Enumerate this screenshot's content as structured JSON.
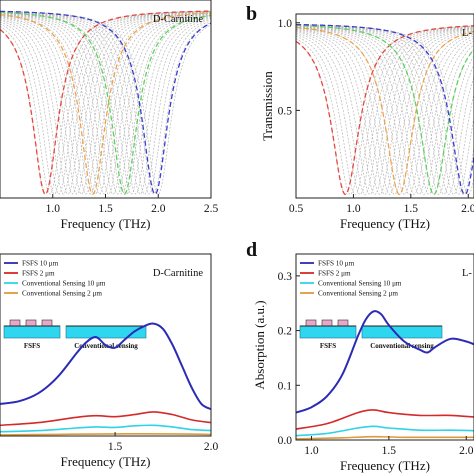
{
  "chart_data": [
    {
      "panel": "a",
      "type": "line",
      "panel_label": "",
      "title": "D-Carnitine",
      "xlabel": "Frequency (THz)",
      "ylabel": "",
      "xlim": [
        0.5,
        2.5
      ],
      "ylim": [
        0.0,
        1.05
      ],
      "xticks": [
        "1.0",
        "1.5",
        "2.0",
        "2.5"
      ],
      "xtick_values": [
        1.0,
        1.5,
        2.0,
        2.5
      ],
      "yticks": [],
      "ytick_values": [],
      "resonance_range": [
        0.93,
        2.0
      ],
      "resonance_width": 0.3,
      "resonance_count": 26,
      "highlighted": [
        {
          "f0": 0.93,
          "color": "#e8453c"
        },
        {
          "f0": 1.38,
          "color": "#f0a24b"
        },
        {
          "f0": 1.68,
          "color": "#5bd35b"
        },
        {
          "f0": 1.97,
          "color": "#3b3bcf"
        }
      ]
    },
    {
      "panel": "b",
      "type": "line",
      "panel_label": "b",
      "title": "L-",
      "xlabel": "Frequency (THz)",
      "ylabel": "Transmission",
      "xlim": [
        0.5,
        2.05
      ],
      "ylim": [
        0.0,
        1.05
      ],
      "xticks": [
        "0.5",
        "1.0",
        "1.5",
        "2.0"
      ],
      "xtick_values": [
        0.5,
        1.0,
        1.5,
        2.0
      ],
      "yticks": [
        "0.5",
        "1.0"
      ],
      "ytick_values": [
        0.5,
        1.0
      ],
      "resonance_range": [
        0.93,
        2.0
      ],
      "resonance_width": 0.3,
      "resonance_count": 26,
      "highlighted": [
        {
          "f0": 0.93,
          "color": "#e8453c"
        },
        {
          "f0": 1.4,
          "color": "#f0a24b"
        },
        {
          "f0": 1.7,
          "color": "#5bd35b"
        },
        {
          "f0": 1.97,
          "color": "#3b3bcf"
        }
      ]
    },
    {
      "panel": "c",
      "type": "line",
      "panel_label": "",
      "title": "D-Carnitine",
      "xlabel": "Frequency (THz)",
      "ylabel": "",
      "xlim": [
        0.9,
        2.0
      ],
      "ylim": [
        0.0,
        0.34
      ],
      "xticks": [
        "1.5",
        "2.0"
      ],
      "xtick_values": [
        1.5,
        2.0
      ],
      "yticks": [],
      "ytick_values": [],
      "legend": [
        "FSFS 10 μm",
        "FSFS 2 μm",
        "Conventional Sensing 10 μm",
        "Conventional Sensing 2 μm"
      ],
      "inset_labels": [
        "FSFS",
        "Conventional sensing"
      ],
      "series": [
        {
          "name": "FSFS 10 μm",
          "color": "#2b2bb5",
          "x": [
            0.9,
            1.0,
            1.1,
            1.2,
            1.3,
            1.35,
            1.4,
            1.45,
            1.5,
            1.55,
            1.6,
            1.65,
            1.7,
            1.75,
            1.8,
            1.85,
            1.9,
            1.95,
            2.0
          ],
          "y": [
            0.06,
            0.065,
            0.08,
            0.11,
            0.155,
            0.175,
            0.185,
            0.17,
            0.165,
            0.18,
            0.195,
            0.205,
            0.21,
            0.2,
            0.17,
            0.13,
            0.09,
            0.06,
            0.05
          ]
        },
        {
          "name": "FSFS 2 μm",
          "color": "#d42a2a",
          "x": [
            0.9,
            1.1,
            1.3,
            1.4,
            1.5,
            1.6,
            1.7,
            1.8,
            1.9,
            2.0
          ],
          "y": [
            0.02,
            0.025,
            0.035,
            0.038,
            0.036,
            0.04,
            0.045,
            0.04,
            0.03,
            0.025
          ]
        },
        {
          "name": "Conventional Sensing 10 μm",
          "color": "#2fd3e8",
          "x": [
            0.9,
            1.1,
            1.3,
            1.4,
            1.5,
            1.6,
            1.7,
            1.8,
            1.9,
            2.0
          ],
          "y": [
            0.008,
            0.01,
            0.015,
            0.017,
            0.016,
            0.019,
            0.02,
            0.017,
            0.012,
            0.01
          ]
        },
        {
          "name": "Conventional Sensing 2 μm",
          "color": "#e09a3c",
          "x": [
            0.9,
            1.2,
            1.5,
            1.8,
            2.0
          ],
          "y": [
            0.002,
            0.003,
            0.004,
            0.004,
            0.003
          ]
        }
      ]
    },
    {
      "panel": "d",
      "type": "line",
      "panel_label": "d",
      "title": "L-",
      "xlabel": "Frequency (THz)",
      "ylabel": "Absorption (a.u.)",
      "xlim": [
        0.9,
        2.05
      ],
      "ylim": [
        0.0,
        0.34
      ],
      "xticks": [
        "1.0",
        "1.5",
        "2.0"
      ],
      "xtick_values": [
        1.0,
        1.5,
        2.0
      ],
      "yticks": [
        "0.0",
        "0.1",
        "0.2",
        "0.3"
      ],
      "ytick_values": [
        0.0,
        0.1,
        0.2,
        0.3
      ],
      "legend": [
        "FSFS 10 μm",
        "FSFS 2 μm",
        "Conventional Sensing 10 μm",
        "Conventional Sensing 2 μm"
      ],
      "inset_labels": [
        "FSFS",
        "Conventional sensing"
      ],
      "series": [
        {
          "name": "FSFS 10 μm",
          "color": "#2b2bb5",
          "x": [
            0.9,
            1.0,
            1.1,
            1.2,
            1.3,
            1.35,
            1.4,
            1.45,
            1.5,
            1.6,
            1.7,
            1.75,
            1.8,
            1.9,
            2.0,
            2.05
          ],
          "y": [
            0.05,
            0.06,
            0.08,
            0.12,
            0.19,
            0.22,
            0.235,
            0.23,
            0.21,
            0.18,
            0.165,
            0.16,
            0.17,
            0.185,
            0.18,
            0.175
          ]
        },
        {
          "name": "FSFS 2 μm",
          "color": "#d42a2a",
          "x": [
            0.9,
            1.1,
            1.3,
            1.4,
            1.5,
            1.7,
            1.9,
            2.05
          ],
          "y": [
            0.02,
            0.03,
            0.05,
            0.055,
            0.05,
            0.045,
            0.045,
            0.042
          ]
        },
        {
          "name": "Conventional Sensing 10 μm",
          "color": "#2fd3e8",
          "x": [
            0.9,
            1.1,
            1.3,
            1.4,
            1.5,
            1.7,
            1.9,
            2.05
          ],
          "y": [
            0.008,
            0.012,
            0.022,
            0.025,
            0.022,
            0.018,
            0.018,
            0.017
          ]
        },
        {
          "name": "Conventional Sensing 2 μm",
          "color": "#e09a3c",
          "x": [
            0.9,
            1.2,
            1.4,
            1.6,
            1.8,
            2.05
          ],
          "y": [
            0.002,
            0.004,
            0.006,
            0.005,
            0.005,
            0.005
          ]
        }
      ]
    }
  ]
}
